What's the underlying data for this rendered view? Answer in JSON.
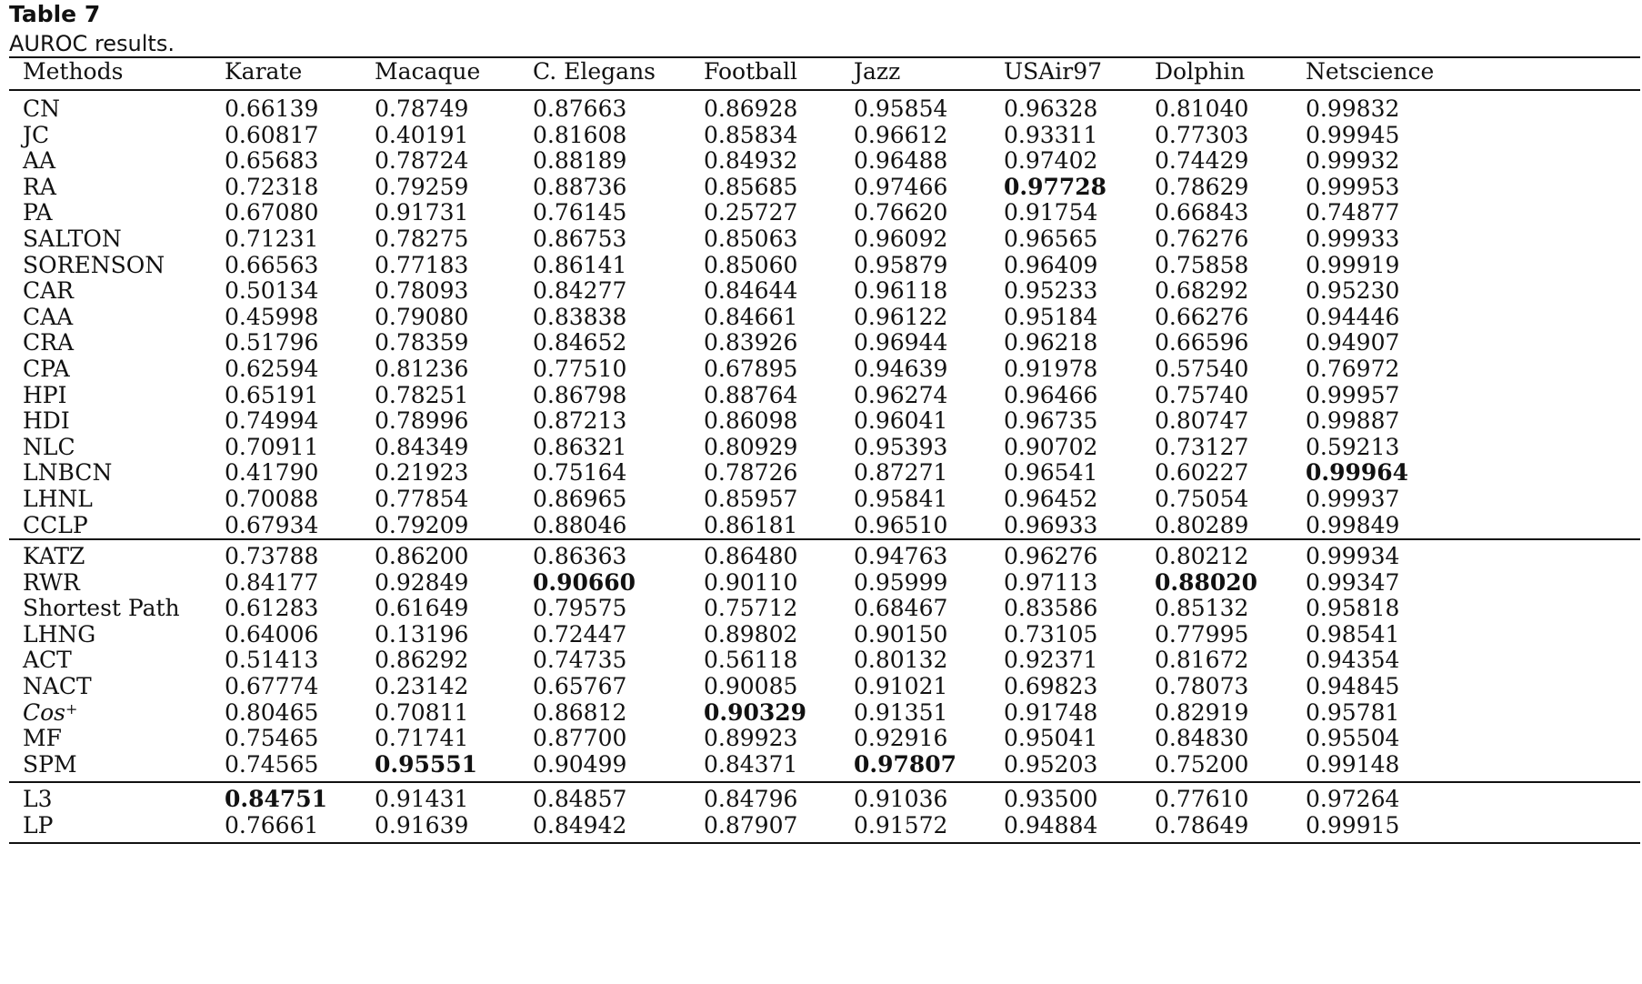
{
  "caption": {
    "label": "Table 7",
    "description": "AUROC results."
  },
  "table": {
    "headers": [
      "Methods",
      "Karate",
      "Macaque",
      "C. Elegans",
      "Football",
      "Jazz",
      "USAir97",
      "Dolphin",
      "Netscience"
    ],
    "groups": [
      {
        "rows": [
          {
            "method": "CN",
            "values": [
              "0.66139",
              "0.78749",
              "0.87663",
              "0.86928",
              "0.95854",
              "0.96328",
              "0.81040",
              "0.99832"
            ],
            "bold": []
          },
          {
            "method": "JC",
            "values": [
              "0.60817",
              "0.40191",
              "0.81608",
              "0.85834",
              "0.96612",
              "0.93311",
              "0.77303",
              "0.99945"
            ],
            "bold": []
          },
          {
            "method": "AA",
            "values": [
              "0.65683",
              "0.78724",
              "0.88189",
              "0.84932",
              "0.96488",
              "0.97402",
              "0.74429",
              "0.99932"
            ],
            "bold": []
          },
          {
            "method": "RA",
            "values": [
              "0.72318",
              "0.79259",
              "0.88736",
              "0.85685",
              "0.97466",
              "0.97728",
              "0.78629",
              "0.99953"
            ],
            "bold": [
              5
            ]
          },
          {
            "method": "PA",
            "values": [
              "0.67080",
              "0.91731",
              "0.76145",
              "0.25727",
              "0.76620",
              "0.91754",
              "0.66843",
              "0.74877"
            ],
            "bold": []
          },
          {
            "method": "SALTON",
            "values": [
              "0.71231",
              "0.78275",
              "0.86753",
              "0.85063",
              "0.96092",
              "0.96565",
              "0.76276",
              "0.99933"
            ],
            "bold": []
          },
          {
            "method": "SORENSON",
            "values": [
              "0.66563",
              "0.77183",
              "0.86141",
              "0.85060",
              "0.95879",
              "0.96409",
              "0.75858",
              "0.99919"
            ],
            "bold": []
          },
          {
            "method": "CAR",
            "values": [
              "0.50134",
              "0.78093",
              "0.84277",
              "0.84644",
              "0.96118",
              "0.95233",
              "0.68292",
              "0.95230"
            ],
            "bold": []
          },
          {
            "method": "CAA",
            "values": [
              "0.45998",
              "0.79080",
              "0.83838",
              "0.84661",
              "0.96122",
              "0.95184",
              "0.66276",
              "0.94446"
            ],
            "bold": []
          },
          {
            "method": "CRA",
            "values": [
              "0.51796",
              "0.78359",
              "0.84652",
              "0.83926",
              "0.96944",
              "0.96218",
              "0.66596",
              "0.94907"
            ],
            "bold": []
          },
          {
            "method": "CPA",
            "values": [
              "0.62594",
              "0.81236",
              "0.77510",
              "0.67895",
              "0.94639",
              "0.91978",
              "0.57540",
              "0.76972"
            ],
            "bold": []
          },
          {
            "method": "HPI",
            "values": [
              "0.65191",
              "0.78251",
              "0.86798",
              "0.88764",
              "0.96274",
              "0.96466",
              "0.75740",
              "0.99957"
            ],
            "bold": []
          },
          {
            "method": "HDI",
            "values": [
              "0.74994",
              "0.78996",
              "0.87213",
              "0.86098",
              "0.96041",
              "0.96735",
              "0.80747",
              "0.99887"
            ],
            "bold": []
          },
          {
            "method": "NLC",
            "values": [
              "0.70911",
              "0.84349",
              "0.86321",
              "0.80929",
              "0.95393",
              "0.90702",
              "0.73127",
              "0.59213"
            ],
            "bold": []
          },
          {
            "method": "LNBCN",
            "values": [
              "0.41790",
              "0.21923",
              "0.75164",
              "0.78726",
              "0.87271",
              "0.96541",
              "0.60227",
              "0.99964"
            ],
            "bold": [
              7
            ]
          },
          {
            "method": "LHNL",
            "values": [
              "0.70088",
              "0.77854",
              "0.86965",
              "0.85957",
              "0.95841",
              "0.96452",
              "0.75054",
              "0.99937"
            ],
            "bold": []
          },
          {
            "method": "CCLP",
            "values": [
              "0.67934",
              "0.79209",
              "0.88046",
              "0.86181",
              "0.96510",
              "0.96933",
              "0.80289",
              "0.99849"
            ],
            "bold": []
          }
        ]
      },
      {
        "rows": [
          {
            "method": "KATZ",
            "values": [
              "0.73788",
              "0.86200",
              "0.86363",
              "0.86480",
              "0.94763",
              "0.96276",
              "0.80212",
              "0.99934"
            ],
            "bold": []
          },
          {
            "method": "RWR",
            "values": [
              "0.84177",
              "0.92849",
              "0.90660",
              "0.90110",
              "0.95999",
              "0.97113",
              "0.88020",
              "0.99347"
            ],
            "bold": [
              2,
              6
            ]
          },
          {
            "method": "Shortest Path",
            "values": [
              "0.61283",
              "0.61649",
              "0.79575",
              "0.75712",
              "0.68467",
              "0.83586",
              "0.85132",
              "0.95818"
            ],
            "bold": []
          },
          {
            "method": "LHNG",
            "values": [
              "0.64006",
              "0.13196",
              "0.72447",
              "0.89802",
              "0.90150",
              "0.73105",
              "0.77995",
              "0.98541"
            ],
            "bold": []
          },
          {
            "method": "ACT",
            "values": [
              "0.51413",
              "0.86292",
              "0.74735",
              "0.56118",
              "0.80132",
              "0.92371",
              "0.81672",
              "0.94354"
            ],
            "bold": []
          },
          {
            "method": "NACT",
            "values": [
              "0.67774",
              "0.23142",
              "0.65767",
              "0.90085",
              "0.91021",
              "0.69823",
              "0.78073",
              "0.94845"
            ],
            "bold": []
          },
          {
            "method": "Cos",
            "method_sup": "+",
            "italic": true,
            "values": [
              "0.80465",
              "0.70811",
              "0.86812",
              "0.90329",
              "0.91351",
              "0.91748",
              "0.82919",
              "0.95781"
            ],
            "bold": [
              3
            ]
          },
          {
            "method": "MF",
            "values": [
              "0.75465",
              "0.71741",
              "0.87700",
              "0.89923",
              "0.92916",
              "0.95041",
              "0.84830",
              "0.95504"
            ],
            "bold": []
          },
          {
            "method": "SPM",
            "values": [
              "0.74565",
              "0.95551",
              "0.90499",
              "0.84371",
              "0.97807",
              "0.95203",
              "0.75200",
              "0.99148"
            ],
            "bold": [
              1,
              4
            ]
          }
        ]
      },
      {
        "rows": [
          {
            "method": "L3",
            "values": [
              "0.84751",
              "0.91431",
              "0.84857",
              "0.84796",
              "0.91036",
              "0.93500",
              "0.77610",
              "0.97264"
            ],
            "bold": [
              0
            ]
          },
          {
            "method": "LP",
            "values": [
              "0.76661",
              "0.91639",
              "0.84942",
              "0.87907",
              "0.91572",
              "0.94884",
              "0.78649",
              "0.99915"
            ],
            "bold": []
          }
        ]
      }
    ]
  }
}
